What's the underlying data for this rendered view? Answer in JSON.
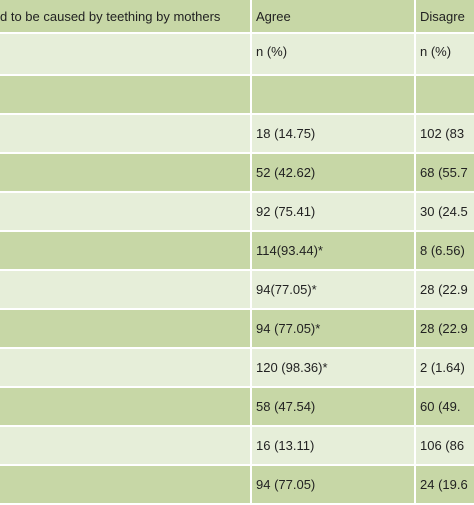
{
  "columns": {
    "condition": "d to be caused by teething by mothers",
    "agree": "Agree",
    "disagree": "Disagre"
  },
  "subheader": {
    "agree": "n (%)",
    "disagree": "n (%)"
  },
  "rows": [
    {
      "agree": "",
      "disagree": ""
    },
    {
      "agree": "18 (14.75)",
      "disagree": "102 (83"
    },
    {
      "agree": "52 (42.62)",
      "disagree": "68 (55.7"
    },
    {
      "agree": "92 (75.41)",
      "disagree": "30 (24.5"
    },
    {
      "agree": "114(93.44)*",
      "disagree": "8 (6.56)"
    },
    {
      "agree": "94(77.05)*",
      "disagree": "28 (22.9"
    },
    {
      "agree": "94 (77.05)*",
      "disagree": "28 (22.9"
    },
    {
      "agree": "120 (98.36)*",
      "disagree": "2 (1.64)"
    },
    {
      "agree": "58 (47.54)",
      "disagree": "60 (49."
    },
    {
      "agree": "16 (13.11)",
      "disagree": "106 (86"
    },
    {
      "agree": "94 (77.05)",
      "disagree": "24 (19.6"
    }
  ],
  "colors": {
    "dark_row": "#c7d7a6",
    "light_row": "#e6eed9"
  }
}
